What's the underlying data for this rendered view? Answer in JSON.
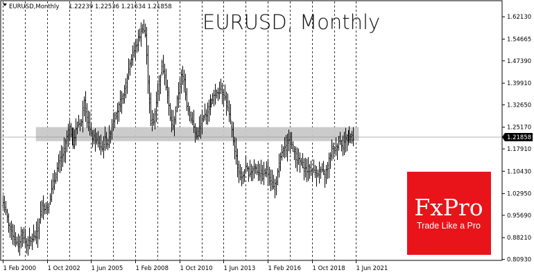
{
  "chart_data": {
    "type": "bar",
    "symbol_info": "EURUSD,Monthly",
    "ohlc_header": "1.22239 1.22536 1.21634 1.21858",
    "title": "EURUSD, Monthly",
    "current_price": "1.21858",
    "ylim": [
      0.806,
      1.645
    ],
    "y_ticks": [
      "1.62130",
      "1.54665",
      "1.47390",
      "1.39910",
      "1.32650",
      "1.25170",
      "1.17910",
      "1.10430",
      "1.02950",
      "0.95690",
      "0.88210",
      "0.80930"
    ],
    "y_tick_values": [
      1.6213,
      1.54665,
      1.4739,
      1.3991,
      1.3265,
      1.2517,
      1.1791,
      1.1043,
      1.0295,
      0.9569,
      0.8821,
      0.8093
    ],
    "x_ticks": [
      "1 Feb 2000",
      "1 Oct 2002",
      "1 Jun 2005",
      "1 Feb 2008",
      "1 Oct 2010",
      "1 Jun 2013",
      "1 Feb 2016",
      "1 Oct 2018",
      "1 Jun 2021"
    ],
    "x_tick_months": [
      0,
      32,
      64,
      96,
      128,
      160,
      192,
      224,
      256
    ],
    "grid": "vertical dashed",
    "highlight_zone": [
      1.205,
      1.252
    ],
    "months_count": 255,
    "anchors": [
      [
        0,
        1.0
      ],
      [
        4,
        0.93
      ],
      [
        9,
        0.87
      ],
      [
        11,
        0.85
      ],
      [
        13,
        0.9
      ],
      [
        17,
        0.86
      ],
      [
        21,
        0.88
      ],
      [
        24,
        0.89
      ],
      [
        28,
        0.99
      ],
      [
        32,
        0.98
      ],
      [
        36,
        1.06
      ],
      [
        40,
        1.13
      ],
      [
        44,
        1.17
      ],
      [
        46,
        1.22
      ],
      [
        48,
        1.25
      ],
      [
        51,
        1.2
      ],
      [
        54,
        1.26
      ],
      [
        57,
        1.27
      ],
      [
        59,
        1.35
      ],
      [
        61,
        1.28
      ],
      [
        64,
        1.22
      ],
      [
        67,
        1.21
      ],
      [
        70,
        1.19
      ],
      [
        72,
        1.18
      ],
      [
        74,
        1.21
      ],
      [
        76,
        1.2
      ],
      [
        80,
        1.28
      ],
      [
        84,
        1.32
      ],
      [
        88,
        1.37
      ],
      [
        92,
        1.47
      ],
      [
        96,
        1.52
      ],
      [
        99,
        1.56
      ],
      [
        101,
        1.59
      ],
      [
        103,
        1.56
      ],
      [
        105,
        1.41
      ],
      [
        107,
        1.27
      ],
      [
        109,
        1.27
      ],
      [
        111,
        1.34
      ],
      [
        113,
        1.4
      ],
      [
        115,
        1.46
      ],
      [
        117,
        1.43
      ],
      [
        119,
        1.36
      ],
      [
        121,
        1.28
      ],
      [
        123,
        1.25
      ],
      [
        125,
        1.31
      ],
      [
        127,
        1.37
      ],
      [
        129,
        1.42
      ],
      [
        131,
        1.41
      ],
      [
        133,
        1.33
      ],
      [
        135,
        1.3
      ],
      [
        138,
        1.25
      ],
      [
        140,
        1.22
      ],
      [
        143,
        1.26
      ],
      [
        146,
        1.29
      ],
      [
        149,
        1.32
      ],
      [
        152,
        1.35
      ],
      [
        155,
        1.37
      ],
      [
        158,
        1.38
      ],
      [
        161,
        1.35
      ],
      [
        164,
        1.29
      ],
      [
        167,
        1.21
      ],
      [
        169,
        1.15
      ],
      [
        171,
        1.1
      ],
      [
        173,
        1.08
      ],
      [
        176,
        1.11
      ],
      [
        179,
        1.1
      ],
      [
        182,
        1.12
      ],
      [
        185,
        1.1
      ],
      [
        188,
        1.09
      ],
      [
        191,
        1.11
      ],
      [
        194,
        1.07
      ],
      [
        196,
        1.05
      ],
      [
        198,
        1.07
      ],
      [
        200,
        1.12
      ],
      [
        202,
        1.17
      ],
      [
        205,
        1.18
      ],
      [
        207,
        1.22
      ],
      [
        209,
        1.19
      ],
      [
        211,
        1.17
      ],
      [
        213,
        1.14
      ],
      [
        216,
        1.13
      ],
      [
        219,
        1.11
      ],
      [
        222,
        1.11
      ],
      [
        225,
        1.1
      ],
      [
        228,
        1.1
      ],
      [
        231,
        1.1
      ],
      [
        233,
        1.09
      ],
      [
        235,
        1.12
      ],
      [
        238,
        1.18
      ],
      [
        241,
        1.18
      ],
      [
        243,
        1.21
      ],
      [
        246,
        1.19
      ],
      [
        248,
        1.21
      ],
      [
        250,
        1.22
      ],
      [
        254,
        1.2186
      ]
    ]
  },
  "logo": {
    "main": "FxPro",
    "tagline": "Trade Like a Pro",
    "color": "#e8141a"
  },
  "colors": {
    "bars": "#000000",
    "zone": "#c8c8c8",
    "grid": "#000000",
    "price_tag": "#000000"
  }
}
